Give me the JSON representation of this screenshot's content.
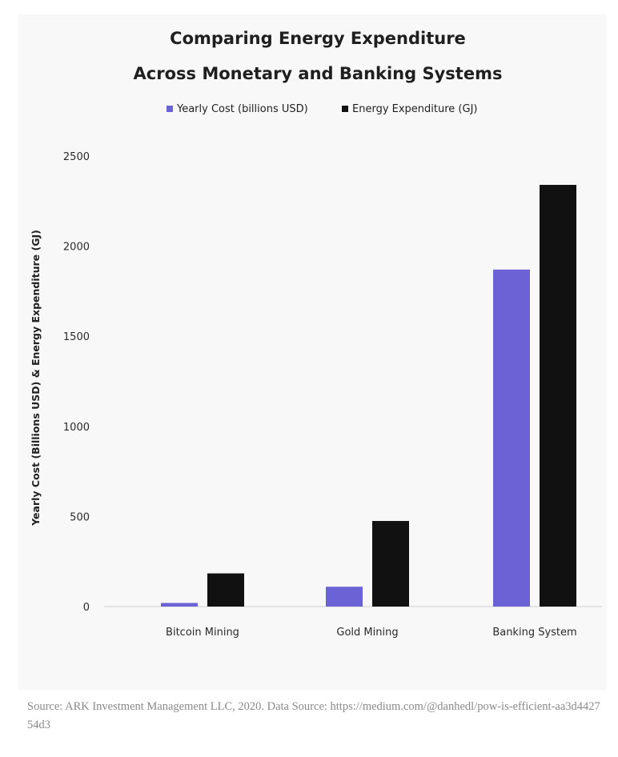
{
  "chart_data": {
    "type": "bar",
    "title": [
      "Comparing Energy Expenditure",
      "Across Monetary and Banking Systems"
    ],
    "categories": [
      "Bitcoin Mining",
      "Gold Mining",
      "Banking System"
    ],
    "series": [
      {
        "name": "Yearly Cost (billions USD)",
        "color": "#6b62d6",
        "values": [
          20,
          110,
          1870
        ]
      },
      {
        "name": "Energy Expenditure (GJ)",
        "color": "#111111",
        "values": [
          184,
          475,
          2340
        ]
      }
    ],
    "xlabel": "",
    "ylabel": "Yearly Cost (Billions USD) & Energy Expenditure (GJ)",
    "ylim": [
      0,
      2500
    ],
    "yticks": [
      "0",
      "500",
      "1000",
      "1500",
      "2000",
      "2500"
    ],
    "grid": false,
    "legend_position": "top-center"
  },
  "footer": {
    "source": "Source: ARK Investment Management LLC, 2020. Data Source: https://medium.com/@danhedl/pow-is-efficient-aa3d442754d3"
  }
}
